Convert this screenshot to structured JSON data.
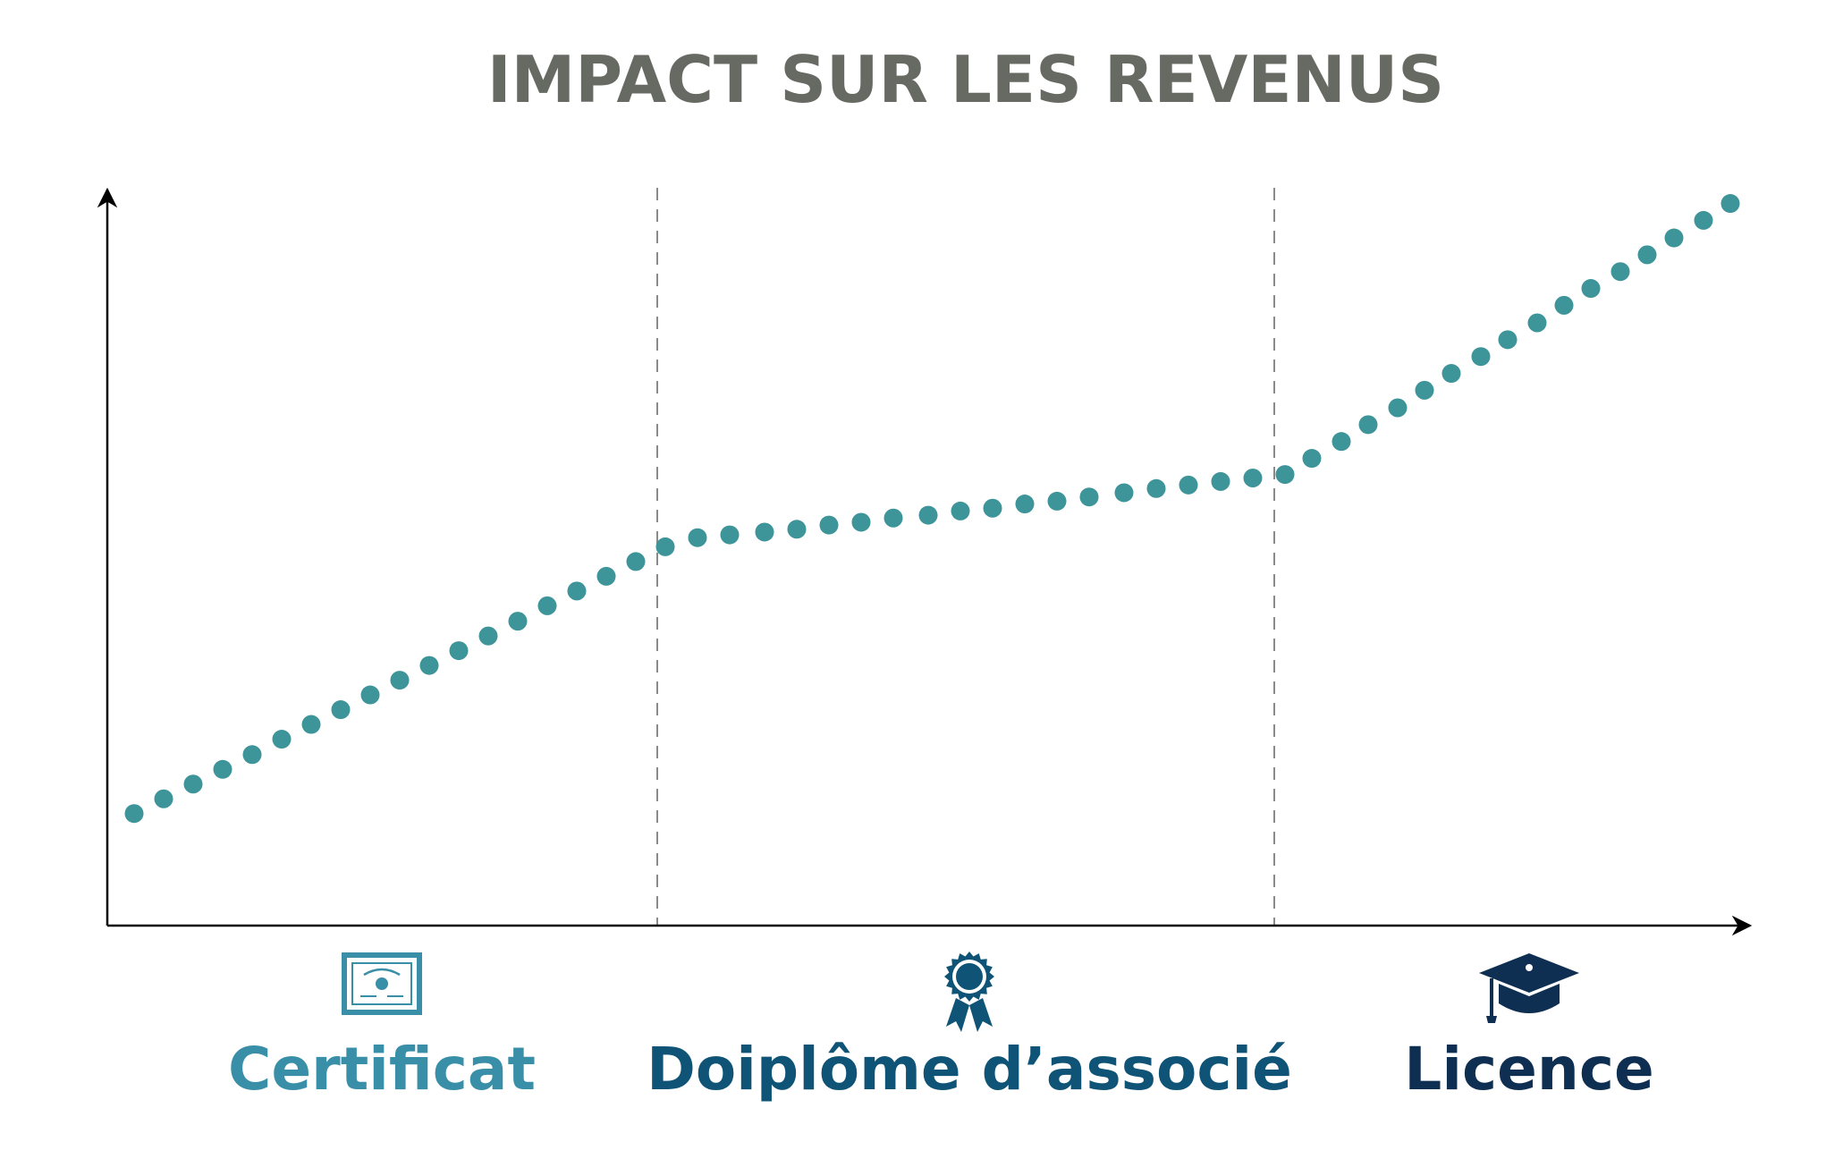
{
  "colors": {
    "title": "#676a63",
    "dots": "#3d9499",
    "axis": "#000000",
    "divider": "#8a8a8a",
    "certificat": "#3a8fa8",
    "diplome": "#0f5476",
    "licence": "#0f2f52"
  },
  "chart_data": {
    "type": "scatter",
    "title": "IMPACT SUR LES REVENUS",
    "xlabel": "",
    "ylabel": "",
    "xlim": [
      0,
      60
    ],
    "ylim": [
      0,
      100
    ],
    "grid": false,
    "categories": [
      "Certificat",
      "Doiplôme d’associé",
      "Licence"
    ],
    "category_icons": [
      "certificate-icon",
      "award-ribbon-icon",
      "graduation-cap-icon"
    ],
    "dividers_x": [
      20,
      43
    ],
    "series": [
      {
        "x": [
          0.5,
          1.6,
          2.7,
          3.8,
          4.9,
          6.0,
          7.1,
          8.2,
          9.3,
          10.4,
          11.5,
          12.6,
          13.7,
          14.8,
          15.9,
          17.0,
          18.1,
          19.2,
          20.3,
          21.5,
          22.7,
          24.0,
          25.2,
          26.4,
          27.6,
          28.8,
          30.1,
          31.3,
          32.5,
          33.7,
          34.9,
          36.1,
          37.4,
          38.6,
          39.8,
          41.0,
          42.2,
          43.4,
          44.4,
          45.5,
          46.5,
          47.6,
          48.6,
          49.6,
          50.7,
          51.7,
          52.8,
          53.8,
          54.8,
          55.9,
          56.9,
          57.9,
          59.0,
          60.0
        ],
        "y": [
          11.5,
          13.6,
          15.7,
          17.8,
          19.9,
          22.1,
          24.2,
          26.3,
          28.4,
          30.5,
          32.6,
          34.7,
          36.8,
          38.9,
          41.1,
          43.2,
          45.3,
          47.4,
          49.5,
          50.8,
          51.2,
          51.6,
          52.0,
          52.6,
          53.0,
          53.6,
          54.0,
          54.6,
          55.0,
          55.6,
          56.0,
          56.6,
          57.2,
          57.8,
          58.3,
          58.8,
          59.3,
          59.8,
          62.1,
          64.5,
          66.9,
          69.3,
          71.8,
          74.2,
          76.6,
          79.0,
          81.4,
          83.9,
          86.3,
          88.7,
          91.1,
          93.5,
          96.0,
          98.4
        ]
      }
    ]
  }
}
